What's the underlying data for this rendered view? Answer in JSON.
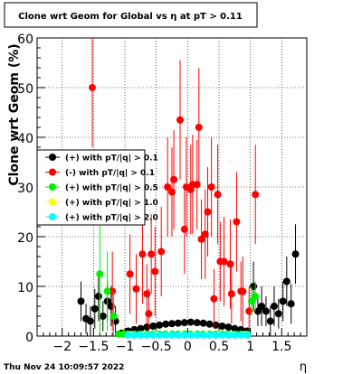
{
  "chart_data": {
    "type": "scatter",
    "title": "Clone wrt Geom for Global vs   η at pT > 0.11",
    "xlabel": "η",
    "ylabel": "Clone wrt Geom (%)",
    "xlim": [
      -2.4,
      1.9
    ],
    "ylim": [
      0,
      60
    ],
    "x_ticks": [
      "−2",
      "−1.5",
      "−1",
      "−0.5",
      "0",
      "0.5",
      "1",
      "1.5"
    ],
    "y_ticks": [
      "0",
      "10",
      "20",
      "30",
      "40",
      "50",
      "60"
    ],
    "grid": true,
    "legend_position": "left",
    "series": [
      {
        "name": "(+) with pT/|q| > 0.1",
        "color": "#000000",
        "x": [
          -1.7,
          -1.62,
          -1.55,
          -1.48,
          -1.42,
          -1.35,
          -1.28,
          -1.22,
          -1.15,
          -1.05,
          -0.95,
          -0.85,
          -0.75,
          -0.65,
          -0.55,
          -0.45,
          -0.35,
          -0.25,
          -0.15,
          -0.05,
          0.05,
          0.15,
          0.25,
          0.35,
          0.45,
          0.55,
          0.65,
          0.75,
          0.85,
          0.95,
          1.05,
          1.12,
          1.18,
          1.25,
          1.32,
          1.38,
          1.45,
          1.52,
          1.58,
          1.65,
          1.72
        ],
        "y": [
          7,
          3.5,
          3,
          5.5,
          8,
          4,
          7,
          6,
          3,
          0.6,
          1,
          1.3,
          1.5,
          1.8,
          2,
          2.2,
          2.4,
          2.5,
          2.6,
          2.7,
          2.8,
          2.7,
          2.6,
          2.4,
          2.2,
          2.0,
          1.8,
          1.5,
          1.3,
          1,
          10,
          5,
          6,
          5,
          3,
          6,
          4.5,
          7,
          11,
          6.5,
          16.5
        ],
        "err": [
          4,
          3,
          3,
          4,
          5,
          3,
          4,
          4,
          3,
          0.3,
          0.3,
          0.3,
          0.3,
          0.3,
          0.3,
          0.3,
          0.3,
          0.3,
          0.3,
          0.3,
          0.3,
          0.3,
          0.3,
          0.3,
          0.3,
          0.3,
          0.3,
          0.3,
          0.3,
          0.3,
          5,
          3,
          4,
          3,
          3,
          4,
          3,
          4,
          5,
          4,
          6
        ]
      },
      {
        "name": "(-) with pT/|q| > 0.1",
        "color": "#ff0000",
        "x": [
          -1.52,
          -1.2,
          -0.92,
          -0.82,
          -0.72,
          -0.62,
          -0.52,
          -0.42,
          -0.32,
          -0.22,
          -0.12,
          -0.02,
          0.08,
          0.18,
          0.28,
          0.38,
          0.48,
          0.58,
          0.68,
          0.78,
          0.88,
          0.98,
          1.08,
          -0.65,
          -0.58,
          -0.25,
          -0.05,
          0.05,
          0.15,
          0.22,
          0.32,
          0.42,
          0.52,
          0.7,
          0.85
        ],
        "y": [
          50,
          9,
          12.5,
          9.5,
          16.5,
          4.5,
          13,
          17,
          30,
          31.5,
          43.5,
          30,
          30.5,
          42,
          20.5,
          30,
          28.5,
          15,
          14.5,
          23,
          9,
          5,
          28.5,
          8.5,
          16.5,
          29,
          21.5,
          29.5,
          30.5,
          19.5,
          25,
          7.5,
          15,
          8.5,
          9
        ],
        "err": [
          12,
          8,
          8,
          7,
          10,
          5,
          9,
          9,
          10,
          10,
          12,
          10,
          10,
          12,
          9,
          10,
          10,
          9,
          9,
          10,
          7,
          5,
          10,
          6,
          8,
          9,
          9,
          9,
          9,
          8,
          9,
          6,
          8,
          6,
          6
        ]
      },
      {
        "name": "(+) with pT/|q| > 0.5",
        "color": "#00ee00",
        "x": [
          -1.4,
          -1.28,
          -1.18,
          -1.1,
          -1.02,
          -0.95,
          -0.85,
          -0.75,
          -0.65,
          -0.55,
          -0.45,
          -0.35,
          -0.25,
          -0.15,
          -0.05,
          0.05,
          0.15,
          0.25,
          0.35,
          0.45,
          0.55,
          0.65,
          0.75,
          0.85,
          0.95,
          1.02,
          1.08
        ],
        "y": [
          12.5,
          9,
          4,
          0.4,
          0.4,
          0.4,
          0.4,
          0.4,
          0.4,
          0.4,
          0.4,
          0.4,
          0.4,
          0.4,
          0.4,
          0.4,
          0.4,
          0.4,
          0.4,
          0.4,
          0.4,
          0.4,
          0.4,
          0.4,
          0.4,
          7,
          8
        ],
        "err": [
          12,
          8,
          5,
          0.3,
          0.3,
          0.3,
          0.3,
          0.3,
          0.3,
          0.3,
          0.3,
          0.3,
          0.3,
          0.3,
          0.3,
          0.3,
          0.3,
          0.3,
          0.3,
          0.3,
          0.3,
          0.3,
          0.3,
          0.3,
          0.3,
          3,
          3
        ]
      },
      {
        "name": "(+) with pT/|q| > 1.0",
        "color": "#ffff00",
        "x": [
          -0.9,
          -0.7,
          -0.5,
          -0.3,
          -0.1,
          0.1,
          0.3,
          0.5,
          0.7,
          0.9
        ],
        "y": [
          0.3,
          0.3,
          0.3,
          0.3,
          0.3,
          0.3,
          0.3,
          0.3,
          0.3,
          0.3
        ],
        "err": [
          0.2,
          0.2,
          0.2,
          0.2,
          0.2,
          0.2,
          0.2,
          0.2,
          0.2,
          0.2
        ]
      },
      {
        "name": "(+) with pT/|q| > 2.0",
        "color": "#00ffff",
        "x": [
          -0.95,
          -0.85,
          -0.75,
          -0.65,
          -0.55,
          -0.45,
          -0.35,
          -0.25,
          -0.15,
          -0.05,
          0.05,
          0.15,
          0.25,
          0.35,
          0.45,
          0.55,
          0.65,
          0.75,
          0.85,
          0.95
        ],
        "y": [
          0.2,
          0.2,
          0.2,
          0.2,
          0.2,
          0.2,
          0.2,
          0.2,
          0.2,
          0.2,
          0.2,
          0.2,
          0.2,
          0.2,
          0.2,
          0.2,
          0.2,
          0.2,
          0.2,
          0.2
        ],
        "err": [
          0.2,
          0.2,
          0.2,
          0.2,
          0.2,
          0.2,
          0.2,
          0.2,
          0.2,
          0.2,
          0.2,
          0.2,
          0.2,
          0.2,
          0.2,
          0.2,
          0.2,
          0.2,
          0.2,
          0.2
        ]
      }
    ]
  },
  "footer": {
    "timestamp": "Thu Nov 24 10:09:57 2022"
  }
}
